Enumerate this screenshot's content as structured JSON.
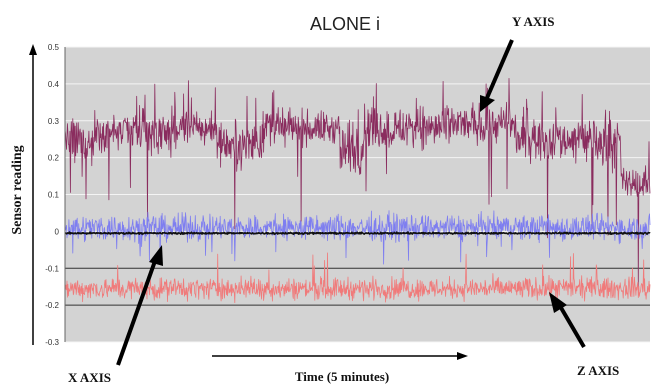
{
  "chart_data": {
    "type": "line",
    "title": "ALONE i",
    "xlabel": "Time (5 minutes)",
    "ylabel": "Sensor reading",
    "ylim": [
      -0.3,
      0.5
    ],
    "yticks": [
      0.5,
      0.4,
      0.3,
      0.2,
      0.1,
      0,
      -0.1,
      -0.2,
      -0.3
    ],
    "ytick_labels": [
      "0.5",
      "0.4",
      "0.3",
      "0.2",
      "0.1",
      "0",
      "-0.1",
      "-0.2",
      "-0.3"
    ],
    "xlim": [
      0,
      5
    ],
    "x_unit": "minutes",
    "grid": true,
    "background": "#d3d3d3",
    "n_samples": 1200,
    "annotations": [
      {
        "text": "Y AXIS",
        "series": "y"
      },
      {
        "text": "X AXIS",
        "series": "x"
      },
      {
        "text": "Z AXIS",
        "series": "z"
      }
    ],
    "series": [
      {
        "id": "y",
        "color": "#8a2c5e",
        "segments": [
          {
            "t0": 0.0,
            "t1": 0.25,
            "mean": 0.24,
            "noise": 0.06
          },
          {
            "t0": 0.25,
            "t1": 0.5,
            "mean": 0.27,
            "noise": 0.05
          },
          {
            "t0": 0.5,
            "t1": 0.95,
            "mean": 0.27,
            "noise": 0.05
          },
          {
            "t0": 0.95,
            "t1": 1.3,
            "mean": 0.28,
            "noise": 0.045
          },
          {
            "t0": 1.3,
            "t1": 1.7,
            "mean": 0.24,
            "noise": 0.05
          },
          {
            "t0": 1.7,
            "t1": 2.35,
            "mean": 0.28,
            "noise": 0.04
          },
          {
            "t0": 2.35,
            "t1": 2.55,
            "mean": 0.22,
            "noise": 0.06
          },
          {
            "t0": 2.55,
            "t1": 3.3,
            "mean": 0.28,
            "noise": 0.05
          },
          {
            "t0": 3.3,
            "t1": 3.85,
            "mean": 0.29,
            "noise": 0.045
          },
          {
            "t0": 3.85,
            "t1": 4.55,
            "mean": 0.25,
            "noise": 0.05
          },
          {
            "t0": 4.55,
            "t1": 4.75,
            "mean": 0.24,
            "noise": 0.055
          },
          {
            "t0": 4.75,
            "t1": 5.0,
            "mean": 0.13,
            "noise": 0.035
          }
        ]
      },
      {
        "id": "x",
        "color": "#7e7ef0",
        "segments": [
          {
            "t0": 0.0,
            "t1": 5.0,
            "mean": 0.01,
            "noise": 0.03
          }
        ]
      },
      {
        "id": "z",
        "color": "#f07a7a",
        "segments": [
          {
            "t0": 0.0,
            "t1": 5.0,
            "mean": -0.155,
            "noise": 0.025
          }
        ]
      },
      {
        "id": "baseline",
        "color": "#111111",
        "segments": [
          {
            "t0": 0.0,
            "t1": 5.0,
            "mean": -0.005,
            "noise": 0.002
          }
        ]
      }
    ]
  }
}
